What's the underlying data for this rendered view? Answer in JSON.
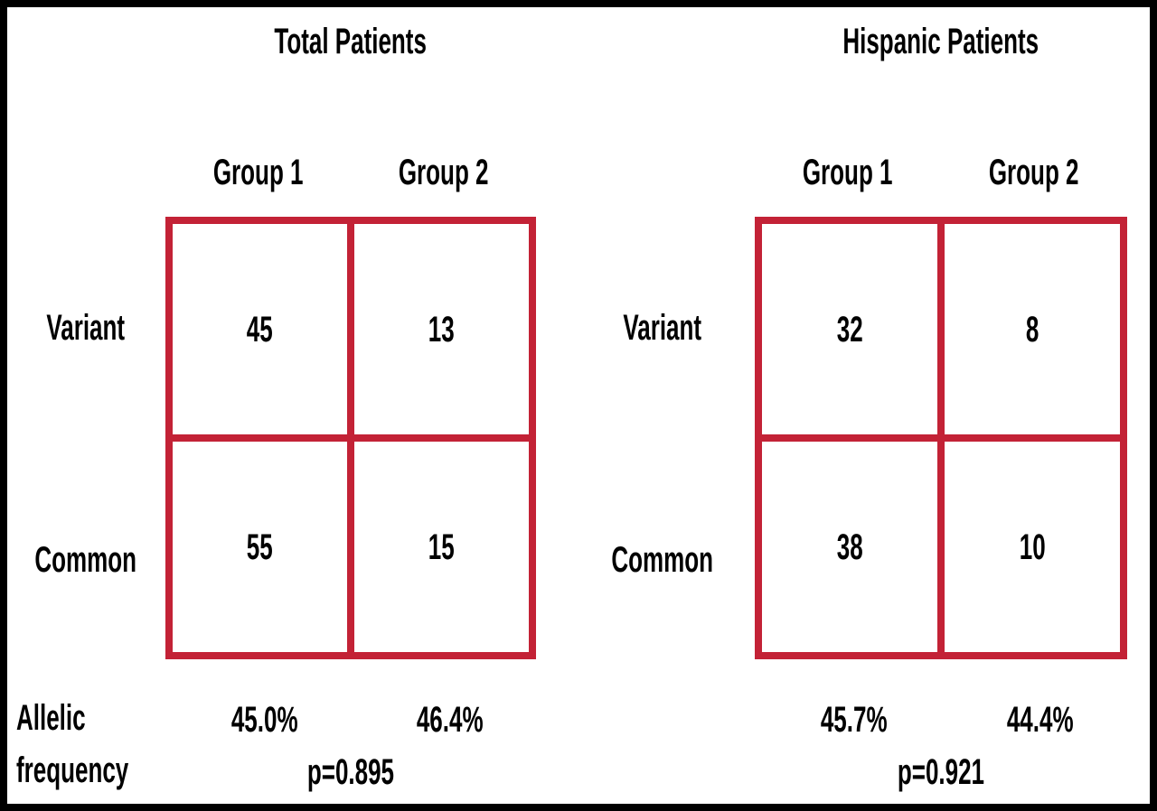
{
  "colors": {
    "table_border": "#C32236",
    "frame": "#000000",
    "text": "#000000",
    "background": "#FFFFFF"
  },
  "footer": {
    "line1": "Allelic",
    "line2": "frequency"
  },
  "chart_data": [
    {
      "type": "table",
      "title": "Total Patients",
      "columns": [
        "Group 1",
        "Group 2"
      ],
      "rows": [
        "Variant",
        "Common"
      ],
      "values": [
        [
          45,
          13
        ],
        [
          55,
          15
        ]
      ],
      "allelic_frequency": [
        "45.0%",
        "46.4%"
      ],
      "p_value": 0.895,
      "p_label": "p=0.895"
    },
    {
      "type": "table",
      "title": "Hispanic Patients",
      "columns": [
        "Group 1",
        "Group 2"
      ],
      "rows": [
        "Variant",
        "Common"
      ],
      "values": [
        [
          32,
          8
        ],
        [
          38,
          10
        ]
      ],
      "allelic_frequency": [
        "45.7%",
        "44.4%"
      ],
      "p_value": 0.921,
      "p_label": "p=0.921"
    }
  ]
}
